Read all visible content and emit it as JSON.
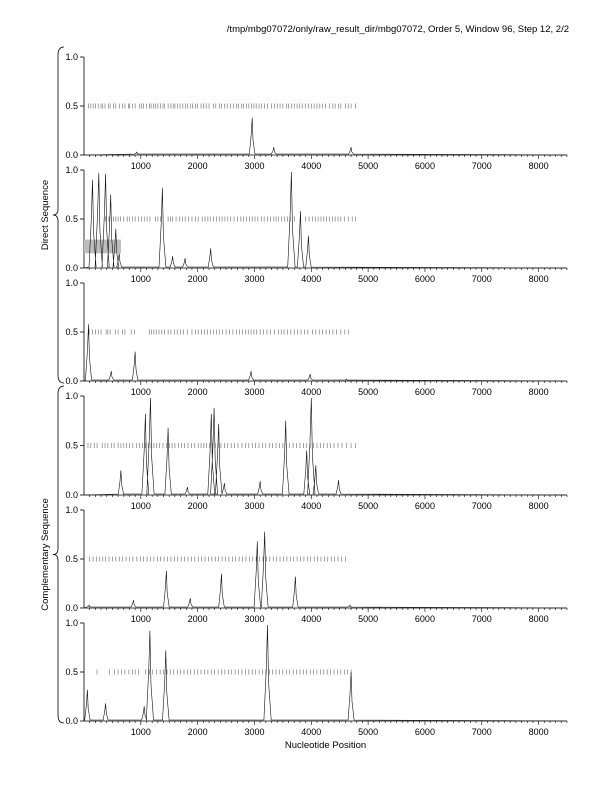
{
  "header": {
    "title": "/tmp/mbg07072/only/raw_result_dir/mbg07072, Order 5, Window 96, Step 12, 2/2"
  },
  "groups": [
    {
      "label": "Direct Sequence",
      "panels": [
        0,
        1,
        2
      ]
    },
    {
      "label": "Complementary Sequence",
      "panels": [
        3,
        4,
        5
      ]
    }
  ],
  "chart_data": {
    "type": "line",
    "xlabel": "Nucleotide Position",
    "xlim": [
      0,
      8500
    ],
    "ylim": [
      0,
      1
    ],
    "x_ticks": [
      1000,
      2000,
      3000,
      4000,
      5000,
      6000,
      7000,
      8000
    ],
    "y_ticks": [
      0,
      0.5,
      1
    ],
    "panels": [
      {
        "peaks": [
          [
            930,
            0.03
          ],
          [
            2960,
            0.38
          ],
          [
            3340,
            0.08
          ],
          [
            4700,
            0.08
          ]
        ],
        "marker_y": 0.5,
        "marker_x": [
          80,
          120,
          160,
          200,
          250,
          300,
          330,
          370,
          430,
          460,
          520,
          560,
          620,
          680,
          720,
          780,
          800,
          850,
          900,
          980,
          1010,
          1050,
          1100,
          1150,
          1180,
          1220,
          1260,
          1300,
          1350,
          1390,
          1420,
          1480,
          1530,
          1570,
          1600,
          1650,
          1690,
          1740,
          1790,
          1820,
          1870,
          1910,
          1960,
          2000,
          2060,
          2100,
          2150,
          2200,
          2280,
          2320,
          2380,
          2420,
          2470,
          2520,
          2580,
          2630,
          2680,
          2720,
          2770,
          2810,
          2860,
          2900,
          2950,
          2990,
          3030,
          3080,
          3120,
          3180,
          3230,
          3300,
          3350,
          3400,
          3450,
          3500,
          3560,
          3600,
          3650,
          3700,
          3750,
          3790,
          3840,
          3900,
          3950,
          4000,
          4050,
          4100,
          4150,
          4200,
          4250,
          4320,
          4380,
          4420,
          4480,
          4520,
          4600,
          4650,
          4700,
          4780
        ]
      },
      {
        "peaks": [
          [
            150,
            0.9
          ],
          [
            260,
            0.97
          ],
          [
            380,
            0.96
          ],
          [
            470,
            0.75
          ],
          [
            560,
            0.4
          ],
          [
            620,
            0.15
          ],
          [
            1380,
            0.82
          ],
          [
            1560,
            0.12
          ],
          [
            1780,
            0.1
          ],
          [
            2230,
            0.2
          ],
          [
            3650,
            0.98
          ],
          [
            3810,
            0.58
          ],
          [
            3950,
            0.33
          ]
        ],
        "marker_y": 0.5,
        "marker_x": [
          380,
          440,
          480,
          520,
          560,
          600,
          640,
          700,
          760,
          800,
          850,
          900,
          960,
          1010,
          1060,
          1110,
          1160,
          1260,
          1300,
          1350,
          1480,
          1520,
          1560,
          1620,
          1680,
          1730,
          1780,
          1840,
          1900,
          1960,
          2010,
          2080,
          2130,
          2180,
          2220,
          2280,
          2330,
          2380,
          2430,
          2480,
          2530,
          2580,
          2640,
          2700,
          2760,
          2810,
          2860,
          2910,
          2960,
          3010,
          3060,
          3120,
          3170,
          3230,
          3280,
          3340,
          3380,
          3420,
          3480,
          3530,
          3580,
          3630,
          3700,
          3900,
          3960,
          4020,
          4070,
          4120,
          4170,
          4220,
          4270,
          4320,
          4370,
          4420,
          4470,
          4520,
          4580,
          4650,
          4720,
          4780
        ],
        "annotation_box": {
          "x0": 0,
          "x1": 650,
          "y0": 0.15,
          "y1": 0.29
        }
      },
      {
        "peaks": [
          [
            80,
            0.58
          ],
          [
            480,
            0.1
          ],
          [
            900,
            0.3
          ],
          [
            2940,
            0.1
          ],
          [
            3980,
            0.07
          ],
          [
            4620,
            0.02
          ]
        ],
        "marker_y": 0.5,
        "marker_x": [
          90,
          150,
          200,
          250,
          300,
          390,
          420,
          460,
          550,
          600,
          680,
          720,
          830,
          890,
          1150,
          1190,
          1230,
          1270,
          1320,
          1370,
          1420,
          1480,
          1530,
          1590,
          1640,
          1700,
          1750,
          1820,
          1900,
          1960,
          2010,
          2070,
          2120,
          2170,
          2230,
          2280,
          2330,
          2380,
          2440,
          2500,
          2560,
          2620,
          2680,
          2740,
          2790,
          2840,
          2890,
          2940,
          2990,
          3040,
          3100,
          3160,
          3220,
          3280,
          3350,
          3420,
          3470,
          3520,
          3580,
          3640,
          3700,
          3760,
          3820,
          3880,
          3940,
          4020,
          4080,
          4140,
          4200,
          4260,
          4320,
          4380,
          4440,
          4520,
          4590,
          4650
        ]
      },
      {
        "peaks": [
          [
            650,
            0.25
          ],
          [
            1080,
            0.82
          ],
          [
            1170,
            0.98
          ],
          [
            1480,
            0.68
          ],
          [
            1820,
            0.08
          ],
          [
            2240,
            0.82
          ],
          [
            2290,
            0.88
          ],
          [
            2370,
            0.72
          ],
          [
            2470,
            0.12
          ],
          [
            3100,
            0.14
          ],
          [
            3550,
            0.75
          ],
          [
            3920,
            0.45
          ],
          [
            4000,
            0.98
          ],
          [
            4080,
            0.3
          ],
          [
            4480,
            0.15
          ]
        ],
        "marker_y": 0.5,
        "marker_x": [
          70,
          120,
          180,
          230,
          320,
          370,
          420,
          480,
          530,
          600,
          650,
          700,
          750,
          800,
          860,
          920,
          980,
          1030,
          1080,
          1130,
          1180,
          1230,
          1280,
          1330,
          1390,
          1450,
          1500,
          1550,
          1600,
          1660,
          1720,
          1770,
          1830,
          1890,
          1950,
          2010,
          2060,
          2110,
          2160,
          2210,
          2260,
          2310,
          2360,
          2410,
          2470,
          2530,
          2590,
          2650,
          2710,
          2780,
          2840,
          2900,
          2960,
          3020,
          3080,
          3140,
          3200,
          3260,
          3320,
          3380,
          3440,
          3500,
          3560,
          3620,
          3680,
          3740,
          3800,
          3860,
          3920,
          3980,
          4040,
          4100,
          4160,
          4220,
          4280,
          4340,
          4400,
          4470,
          4540,
          4620,
          4700,
          4780
        ]
      },
      {
        "peaks": [
          [
            90,
            0.03
          ],
          [
            870,
            0.08
          ],
          [
            1450,
            0.38
          ],
          [
            1870,
            0.1
          ],
          [
            2420,
            0.35
          ],
          [
            3050,
            0.68
          ],
          [
            3180,
            0.78
          ],
          [
            3720,
            0.32
          ],
          [
            4680,
            0.03
          ]
        ],
        "marker_y": 0.5,
        "marker_x": [
          100,
          160,
          220,
          270,
          330,
          380,
          440,
          500,
          560,
          620,
          680,
          740,
          800,
          860,
          930,
          990,
          1050,
          1110,
          1170,
          1230,
          1290,
          1350,
          1410,
          1470,
          1530,
          1590,
          1650,
          1710,
          1770,
          1830,
          1890,
          1950,
          2010,
          2070,
          2130,
          2190,
          2250,
          2310,
          2370,
          2430,
          2490,
          2550,
          2610,
          2670,
          2730,
          2790,
          2850,
          2910,
          2970,
          3030,
          3090,
          3150,
          3210,
          3270,
          3330,
          3390,
          3450,
          3510,
          3570,
          3630,
          3690,
          3750,
          3810,
          3870,
          3930,
          3990,
          4050,
          4110,
          4170,
          4230,
          4290,
          4350,
          4410,
          4470,
          4530,
          4600
        ]
      },
      {
        "peaks": [
          [
            60,
            0.32
          ],
          [
            380,
            0.18
          ],
          [
            1060,
            0.15
          ],
          [
            1160,
            0.92
          ],
          [
            1440,
            0.72
          ],
          [
            3230,
            0.98
          ],
          [
            4700,
            0.5
          ]
        ],
        "marker_y": 0.5,
        "marker_x": [
          230,
          450,
          540,
          600,
          660,
          720,
          790,
          850,
          900,
          960,
          1080,
          1150,
          1210,
          1280,
          1340,
          1400,
          1460,
          1520,
          1580,
          1640,
          1700,
          1760,
          1820,
          1880,
          1940,
          2000,
          2060,
          2120,
          2180,
          2240,
          2300,
          2360,
          2420,
          2480,
          2540,
          2600,
          2660,
          2720,
          2780,
          2840,
          2900,
          2960,
          3020,
          3080,
          3140,
          3200,
          3260,
          3320,
          3380,
          3440,
          3500,
          3560,
          3620,
          3680,
          3740,
          3800,
          3860,
          3920,
          3980,
          4040,
          4100,
          4160,
          4220,
          4280,
          4340,
          4400,
          4460,
          4520,
          4580,
          4640,
          4700
        ]
      }
    ]
  }
}
